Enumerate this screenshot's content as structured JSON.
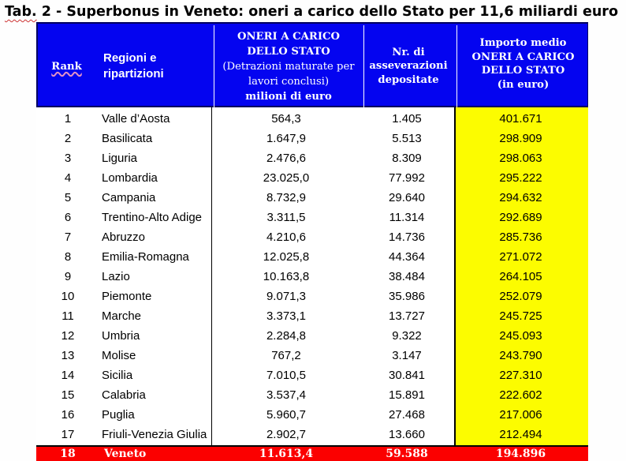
{
  "title": {
    "word1": "Tab.",
    "rest": " 2 - Superbonus in Veneto: oneri a carico dello Stato per 11,6 miliardi euro"
  },
  "table": {
    "header": {
      "rank": "Rank",
      "region_line1": "Regioni e",
      "region_line2": "ripartizioni",
      "oneri_line1": "ONERI A CARICO",
      "oneri_line2": "DELLO STATO",
      "oneri_line3": "(Detrazioni maturate per",
      "oneri_line4": "lavori conclusi)",
      "oneri_line5": "milioni di euro",
      "nr_line1": "Nr. di",
      "nr_line2": "asseverazioni",
      "nr_line3": "depositate",
      "medio_line1": "Importo medio",
      "medio_line2": "ONERI A CARICO",
      "medio_line3": "DELLO STATO",
      "medio_line4": "(in euro)"
    },
    "rows": [
      {
        "rank": "1",
        "region": "Valle d’Aosta",
        "oneri": "564,3",
        "asseverazioni": "1.405",
        "importo": "401.671"
      },
      {
        "rank": "2",
        "region": "Basilicata",
        "oneri": "1.647,9",
        "asseverazioni": "5.513",
        "importo": "298.909"
      },
      {
        "rank": "3",
        "region": "Liguria",
        "oneri": "2.476,6",
        "asseverazioni": "8.309",
        "importo": "298.063"
      },
      {
        "rank": "4",
        "region": "Lombardia",
        "oneri": "23.025,0",
        "asseverazioni": "77.992",
        "importo": "295.222"
      },
      {
        "rank": "5",
        "region": "Campania",
        "oneri": "8.732,9",
        "asseverazioni": "29.640",
        "importo": "294.632"
      },
      {
        "rank": "6",
        "region": "Trentino-Alto Adige",
        "oneri": "3.311,5",
        "asseverazioni": "11.314",
        "importo": "292.689"
      },
      {
        "rank": "7",
        "region": "Abruzzo",
        "oneri": "4.210,6",
        "asseverazioni": "14.736",
        "importo": "285.736"
      },
      {
        "rank": "8",
        "region": "Emilia-Romagna",
        "oneri": "12.025,8",
        "asseverazioni": "44.364",
        "importo": "271.072"
      },
      {
        "rank": "9",
        "region": "Lazio",
        "oneri": "10.163,8",
        "asseverazioni": "38.484",
        "importo": "264.105"
      },
      {
        "rank": "10",
        "region": "Piemonte",
        "oneri": "9.071,3",
        "asseverazioni": "35.986",
        "importo": "252.079"
      },
      {
        "rank": "11",
        "region": "Marche",
        "oneri": "3.373,1",
        "asseverazioni": "13.727",
        "importo": "245.725"
      },
      {
        "rank": "12",
        "region": "Umbria",
        "oneri": "2.284,8",
        "asseverazioni": "9.322",
        "importo": "245.093"
      },
      {
        "rank": "13",
        "region": "Molise",
        "oneri": "767,2",
        "asseverazioni": "3.147",
        "importo": "243.790"
      },
      {
        "rank": "14",
        "region": "Sicilia",
        "oneri": "7.010,5",
        "asseverazioni": "30.841",
        "importo": "227.310"
      },
      {
        "rank": "15",
        "region": "Calabria",
        "oneri": "3.537,4",
        "asseverazioni": "15.891",
        "importo": "222.602"
      },
      {
        "rank": "16",
        "region": "Puglia",
        "oneri": "5.960,7",
        "asseverazioni": "27.468",
        "importo": "217.006"
      },
      {
        "rank": "17",
        "region": "Friuli-Venezia Giulia",
        "oneri": "2.902,7",
        "asseverazioni": "13.660",
        "importo": "212.494"
      }
    ],
    "total_row": {
      "rank": "18",
      "region": "Veneto",
      "oneri": "11.613,4",
      "asseverazioni": "59.588",
      "importo": "194.896"
    },
    "colors": {
      "header_blue": "#0404F0",
      "border_navy": "#000060",
      "yellow_column": "#FCFC00",
      "total_red": "#FB0000",
      "squiggle_red": "#cc3333"
    }
  }
}
